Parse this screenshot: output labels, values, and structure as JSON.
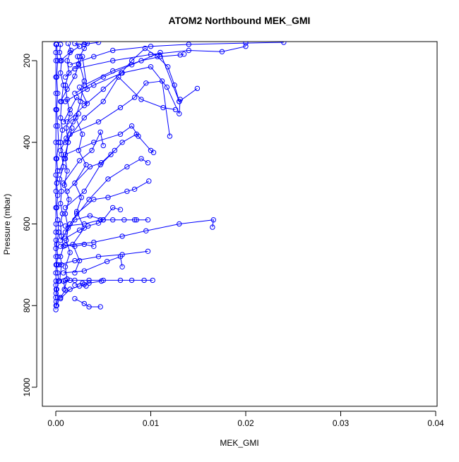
{
  "chart_data": {
    "type": "scatter",
    "title": "ATOM2 Northbound MEK_GMI",
    "xlabel": "MEK_GMI",
    "ylabel": "Pressure (mbar)",
    "xlim": [
      0.0,
      0.04
    ],
    "ylim": [
      1040,
      155
    ],
    "y_reversed": true,
    "grid": false,
    "legend": "none",
    "marker": "open-circle",
    "connect_points": true,
    "color": "#0000ff",
    "x_ticks": [
      "0.00",
      "0.01",
      "0.02",
      "0.03",
      "0.04"
    ],
    "x_tick_values": [
      0.0,
      0.01,
      0.02,
      0.03,
      0.04
    ],
    "y_ticks": [
      "200",
      "400",
      "600",
      "800",
      "1000"
    ],
    "y_tick_values": [
      200,
      400,
      600,
      800,
      1000
    ],
    "series": [
      {
        "x": [
          1e-05,
          2e-05,
          3e-05,
          1e-05,
          2e-05,
          4e-05,
          1e-05,
          2e-05,
          1e-05,
          3e-05,
          2e-05,
          1e-05,
          2e-05,
          1e-05,
          2e-05,
          1e-05,
          2e-05,
          1e-05,
          2e-05,
          1e-05,
          2e-05,
          1e-05,
          2e-05,
          1e-05,
          2e-05,
          1e-05,
          2e-05
        ],
        "y": [
          810,
          800,
          790,
          780,
          770,
          760,
          750,
          740,
          720,
          700,
          680,
          660,
          640,
          620,
          600,
          560,
          520,
          480,
          440,
          400,
          360,
          320,
          280,
          240,
          200,
          180,
          160
        ]
      },
      {
        "x": [
          0.0001,
          0.0002,
          0.0001,
          0.0003,
          0.0002,
          0.0001,
          0.0002,
          0.0001,
          0.0003,
          0.0002,
          0.0001,
          0.0002,
          0.0001,
          0.0002,
          0.0001,
          0.0003,
          0.0002,
          0.0001,
          0.0002,
          0.0001,
          0.0002,
          0.0001
        ],
        "y": [
          800,
          780,
          760,
          740,
          720,
          700,
          680,
          650,
          620,
          590,
          560,
          530,
          500,
          470,
          440,
          400,
          360,
          320,
          280,
          240,
          200,
          160
        ]
      },
      {
        "x": [
          0.0004,
          0.0006,
          0.0005,
          0.0008,
          0.0006,
          0.0005,
          0.0007,
          0.0005,
          0.0006,
          0.0004,
          0.0008,
          0.0006,
          0.0005,
          0.0007,
          0.0005,
          0.0006,
          0.0008,
          0.0005,
          0.0006,
          0.0004,
          0.0005
        ],
        "y": [
          740,
          700,
          680,
          655,
          630,
          600,
          575,
          550,
          520,
          490,
          460,
          430,
          400,
          370,
          340,
          300,
          260,
          230,
          200,
          180,
          160
        ]
      },
      {
        "x": [
          0.0009,
          0.0012,
          0.001,
          0.0015,
          0.0011,
          0.0013,
          0.001,
          0.0014,
          0.0009,
          0.0012,
          0.001,
          0.0013,
          0.0011,
          0.0015,
          0.0012,
          0.001,
          0.0014,
          0.0012,
          0.0016,
          0.0013
        ],
        "y": [
          760,
          735,
          705,
          670,
          640,
          610,
          575,
          540,
          505,
          470,
          440,
          400,
          365,
          330,
          295,
          260,
          230,
          200,
          175,
          158
        ]
      },
      {
        "x": [
          0.002,
          0.0025,
          0.0018,
          0.003,
          0.0022,
          0.0027,
          0.002,
          0.0032,
          0.0024,
          0.0028,
          0.0021,
          0.0026,
          0.003,
          0.0023
        ],
        "y": [
          720,
          690,
          650,
          610,
          570,
          535,
          500,
          455,
          420,
          380,
          340,
          300,
          250,
          190
        ]
      },
      {
        "x": [
          0.0005,
          0.001,
          0.0008,
          0.0015
        ],
        "y": [
          780,
          762,
          740,
          738
        ]
      },
      {
        "x": [
          0.001,
          0.002,
          0.0035,
          0.005,
          0.0068,
          0.008,
          0.0093,
          0.0102
        ],
        "y": [
          738,
          738,
          738,
          738,
          738,
          738,
          738,
          738
        ]
      },
      {
        "x": [
          0.0005,
          0.0015,
          0.0025,
          0.0035,
          0.0048
        ],
        "y": [
          783,
          760,
          752,
          745,
          740
        ]
      },
      {
        "x": [
          0.002,
          0.003,
          0.0035,
          0.0047
        ],
        "y": [
          783,
          795,
          803,
          803
        ]
      },
      {
        "x": [
          0.002,
          0.0028,
          0.0032,
          0.003
        ],
        "y": [
          750,
          745,
          752,
          748
        ]
      },
      {
        "x": [
          0.0008,
          0.003,
          0.0054,
          0.0068,
          0.007
        ],
        "y": [
          720,
          715,
          692,
          680,
          705
        ]
      },
      {
        "x": [
          0.0003,
          0.002,
          0.0045,
          0.007,
          0.0097
        ],
        "y": [
          700,
          690,
          680,
          675,
          667
        ]
      },
      {
        "x": [
          0.0005,
          0.001,
          0.002,
          0.003,
          0.004
        ],
        "y": [
          655,
          652,
          655,
          650,
          655
        ]
      },
      {
        "x": [
          0.001,
          0.004,
          0.007,
          0.0095,
          0.013,
          0.0166,
          0.0165
        ],
        "y": [
          652,
          645,
          630,
          617,
          600,
          590,
          608
        ]
      },
      {
        "x": [
          0.001,
          0.003,
          0.0047,
          0.006,
          0.0072,
          0.0083,
          0.0085,
          0.0097
        ],
        "y": [
          605,
          600,
          590,
          590,
          590,
          590,
          590,
          590
        ]
      },
      {
        "x": [
          0.001,
          0.0025,
          0.0034,
          0.0045,
          0.005
        ],
        "y": [
          635,
          615,
          605,
          598,
          590
        ]
      },
      {
        "x": [
          0.0005,
          0.002,
          0.0036,
          0.005,
          0.006,
          0.0068
        ],
        "y": [
          640,
          590,
          580,
          590,
          560,
          565
        ]
      },
      {
        "x": [
          0.001,
          0.0022,
          0.004,
          0.0055,
          0.0075,
          0.0083,
          0.0098
        ],
        "y": [
          620,
          575,
          540,
          535,
          520,
          515,
          495
        ]
      },
      {
        "x": [
          0.0015,
          0.0035,
          0.0055,
          0.0075,
          0.009,
          0.0097
        ],
        "y": [
          600,
          540,
          490,
          460,
          440,
          450
        ]
      },
      {
        "x": [
          0.001,
          0.003,
          0.0047,
          0.0058,
          0.007,
          0.0085,
          0.01,
          0.0103
        ],
        "y": [
          560,
          520,
          455,
          430,
          400,
          380,
          420,
          425
        ]
      },
      {
        "x": [
          0.0012,
          0.0036,
          0.0048,
          0.0062
        ],
        "y": [
          520,
          460,
          450,
          420
        ]
      },
      {
        "x": [
          0.0008,
          0.0025,
          0.0038,
          0.0047,
          0.005
        ],
        "y": [
          500,
          445,
          420,
          375,
          408
        ]
      },
      {
        "x": [
          0.001,
          0.004,
          0.0068,
          0.008,
          0.0087
        ],
        "y": [
          430,
          400,
          380,
          360,
          385
        ]
      },
      {
        "x": [
          0.0015,
          0.0045,
          0.0068,
          0.0083,
          0.0095,
          0.0112,
          0.012
        ],
        "y": [
          380,
          350,
          315,
          290,
          255,
          250,
          385
        ]
      },
      {
        "x": [
          0.001,
          0.003,
          0.005,
          0.0066,
          0.009,
          0.0113,
          0.0126
        ],
        "y": [
          400,
          340,
          300,
          240,
          295,
          315,
          320
        ]
      },
      {
        "x": [
          0.0012,
          0.003,
          0.005,
          0.0069,
          0.008,
          0.0094,
          0.0107,
          0.0118,
          0.0125,
          0.013
        ],
        "y": [
          350,
          310,
          270,
          230,
          200,
          170,
          190,
          215,
          260,
          300
        ]
      },
      {
        "x": [
          0.001,
          0.004,
          0.007,
          0.01,
          0.0117,
          0.013,
          0.0131
        ],
        "y": [
          300,
          260,
          230,
          215,
          265,
          330,
          295
        ]
      },
      {
        "x": [
          0.002,
          0.005,
          0.008,
          0.011,
          0.013,
          0.0149
        ],
        "y": [
          280,
          240,
          210,
          180,
          300,
          268
        ]
      },
      {
        "x": [
          0.003,
          0.006,
          0.009,
          0.011,
          0.0131,
          0.0135
        ],
        "y": [
          260,
          225,
          200,
          190,
          186,
          184
        ]
      },
      {
        "x": [
          0.002,
          0.006,
          0.01,
          0.014,
          0.0175,
          0.02
        ],
        "y": [
          220,
          200,
          185,
          175,
          178,
          165
        ]
      },
      {
        "x": [
          0.0015,
          0.004,
          0.006,
          0.01,
          0.014,
          0.02,
          0.024
        ],
        "y": [
          210,
          190,
          175,
          165,
          160,
          157,
          155
        ]
      },
      {
        "x": [
          0.0005,
          0.0015,
          0.0025,
          0.002,
          0.003,
          0.0045
        ],
        "y": [
          200,
          180,
          165,
          158,
          160,
          155
        ]
      },
      {
        "x": [
          0.0025,
          0.003,
          0.0033,
          0.0031
        ],
        "y": [
          190,
          170,
          158,
          155
        ]
      },
      {
        "x": [
          0.001,
          0.0024,
          0.0028,
          0.0033
        ],
        "y": [
          240,
          208,
          190,
          270
        ]
      },
      {
        "x": [
          0.0005,
          0.0012,
          0.002,
          0.0024
        ],
        "y": [
          300,
          270,
          238,
          210
        ]
      },
      {
        "x": [
          0.0008,
          0.0015,
          0.0022,
          0.0033,
          0.0025
        ],
        "y": [
          350,
          320,
          290,
          305,
          265
        ]
      },
      {
        "x": [
          0.0005,
          0.0011,
          0.0018,
          0.0024
        ],
        "y": [
          420,
          390,
          350,
          330
        ]
      },
      {
        "x": [
          0.0004,
          0.0009,
          0.0013,
          0.0017
        ],
        "y": [
          470,
          440,
          400,
          365
        ]
      }
    ]
  }
}
